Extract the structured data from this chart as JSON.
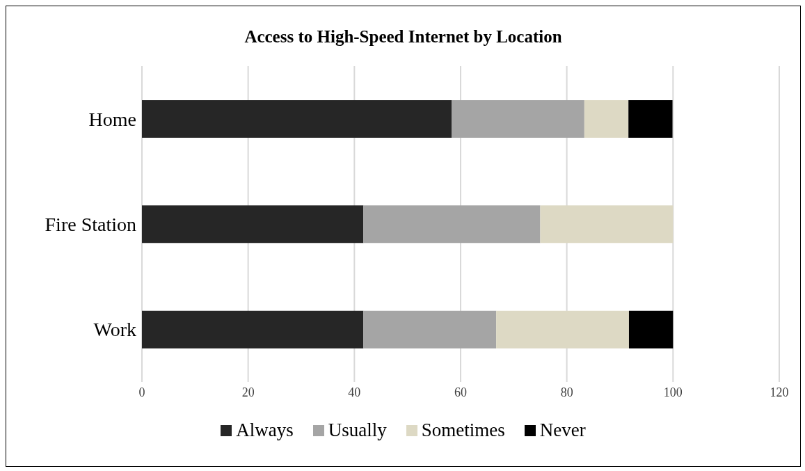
{
  "chart_data": {
    "type": "bar",
    "orientation": "horizontal",
    "stacked": true,
    "title": "Access to High-Speed Internet by Location",
    "categories": [
      "Home",
      "Fire Station",
      "Work"
    ],
    "series": [
      {
        "name": "Always",
        "color": "#262626",
        "values": [
          58.3,
          41.7,
          41.7
        ]
      },
      {
        "name": "Usually",
        "color": "#a5a5a5",
        "values": [
          25,
          33.3,
          25
        ]
      },
      {
        "name": "Sometimes",
        "color": "#ddd9c4",
        "values": [
          8.3,
          25,
          25
        ]
      },
      {
        "name": "Never",
        "color": "#000000",
        "values": [
          8.3,
          0,
          8.3
        ]
      }
    ],
    "xlim": [
      0,
      120
    ],
    "xticks": [
      0,
      20,
      40,
      60,
      80,
      100,
      120
    ],
    "grid": "x",
    "legend": "bottom"
  }
}
